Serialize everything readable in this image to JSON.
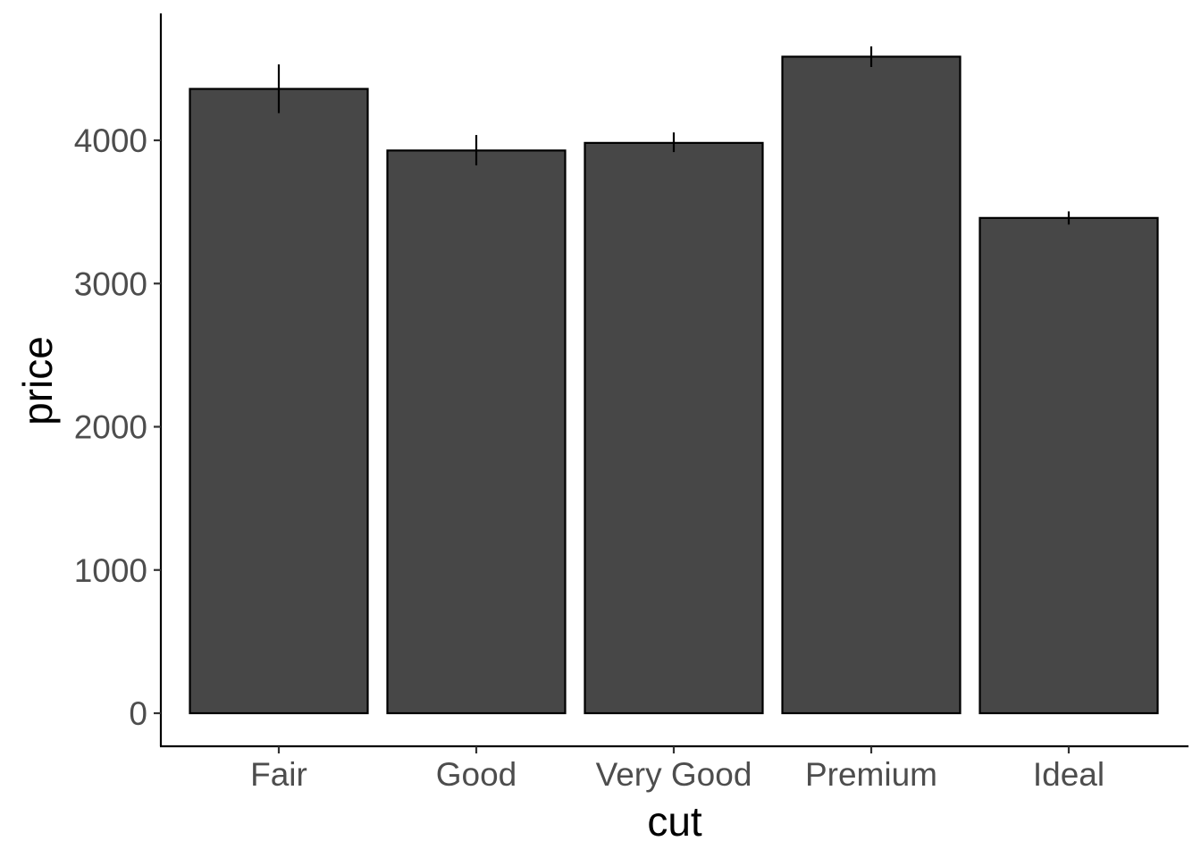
{
  "chart_data": {
    "type": "bar",
    "title": "",
    "xlabel": "cut",
    "ylabel": "price",
    "categories": [
      "Fair",
      "Good",
      "Very Good",
      "Premium",
      "Ideal"
    ],
    "values": [
      4359,
      3929,
      3982,
      4584,
      3458
    ],
    "error_low": [
      4190,
      3825,
      3918,
      4512,
      3412
    ],
    "error_high": [
      4530,
      4037,
      4055,
      4656,
      3504
    ],
    "yticks": [
      0,
      1000,
      2000,
      3000,
      4000
    ],
    "ylim": [
      -230,
      4880
    ],
    "grid": false,
    "bar_fill": "#474747",
    "bar_stroke": "#000000"
  }
}
